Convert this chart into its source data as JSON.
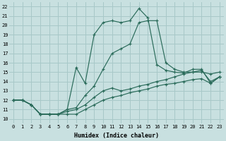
{
  "xlabel": "Humidex (Indice chaleur)",
  "xlim": [
    -0.5,
    23.5
  ],
  "ylim": [
    9.5,
    22.5
  ],
  "xticks": [
    0,
    1,
    2,
    3,
    4,
    5,
    6,
    7,
    8,
    9,
    10,
    11,
    12,
    13,
    14,
    15,
    16,
    17,
    18,
    19,
    20,
    21,
    22,
    23
  ],
  "yticks": [
    10,
    11,
    12,
    13,
    14,
    15,
    16,
    17,
    18,
    19,
    20,
    21,
    22
  ],
  "bg_color": "#c8e0e0",
  "grid_color": "#a8c8c8",
  "line_color": "#2a6b5a",
  "curves": [
    {
      "x": [
        0,
        1,
        2,
        3,
        4,
        5,
        6,
        7,
        8,
        9,
        10,
        11,
        12,
        13,
        14,
        15,
        16,
        17,
        18,
        19,
        20,
        21,
        22,
        23
      ],
      "y": [
        12.0,
        12.0,
        11.5,
        10.5,
        10.5,
        10.5,
        10.5,
        10.5,
        11.0,
        11.5,
        12.0,
        12.3,
        12.5,
        12.8,
        13.0,
        13.2,
        13.5,
        13.7,
        13.8,
        14.0,
        14.2,
        14.3,
        13.8,
        14.5
      ]
    },
    {
      "x": [
        0,
        1,
        2,
        3,
        4,
        5,
        6,
        7,
        8,
        9,
        10,
        11,
        12,
        13,
        14,
        15,
        16,
        17,
        18,
        19,
        20,
        21,
        22,
        23
      ],
      "y": [
        12.0,
        12.0,
        11.5,
        10.5,
        10.5,
        10.5,
        10.8,
        11.0,
        11.5,
        12.3,
        13.0,
        13.3,
        13.0,
        13.2,
        13.5,
        13.7,
        14.0,
        14.2,
        14.5,
        14.8,
        15.0,
        15.0,
        14.8,
        15.0
      ]
    },
    {
      "x": [
        0,
        1,
        2,
        3,
        4,
        5,
        6,
        7,
        8,
        9,
        10,
        11,
        12,
        13,
        14,
        15,
        16,
        17,
        18,
        19,
        20,
        21,
        22,
        23
      ],
      "y": [
        12.0,
        12.0,
        11.5,
        10.5,
        10.5,
        10.5,
        11.0,
        15.5,
        13.8,
        19.0,
        20.3,
        20.5,
        20.3,
        20.5,
        21.8,
        20.8,
        15.8,
        15.2,
        15.0,
        14.9,
        15.3,
        15.3,
        13.8,
        14.5
      ]
    },
    {
      "x": [
        0,
        1,
        2,
        3,
        4,
        5,
        6,
        7,
        8,
        9,
        10,
        11,
        12,
        13,
        14,
        15,
        16,
        17,
        18,
        19,
        20,
        21,
        22,
        23
      ],
      "y": [
        12.0,
        12.0,
        11.5,
        10.5,
        10.5,
        10.5,
        11.0,
        11.2,
        12.5,
        13.5,
        15.3,
        17.0,
        17.5,
        18.0,
        20.3,
        20.5,
        20.5,
        16.0,
        15.3,
        15.0,
        15.0,
        15.2,
        14.0,
        14.5
      ]
    }
  ]
}
